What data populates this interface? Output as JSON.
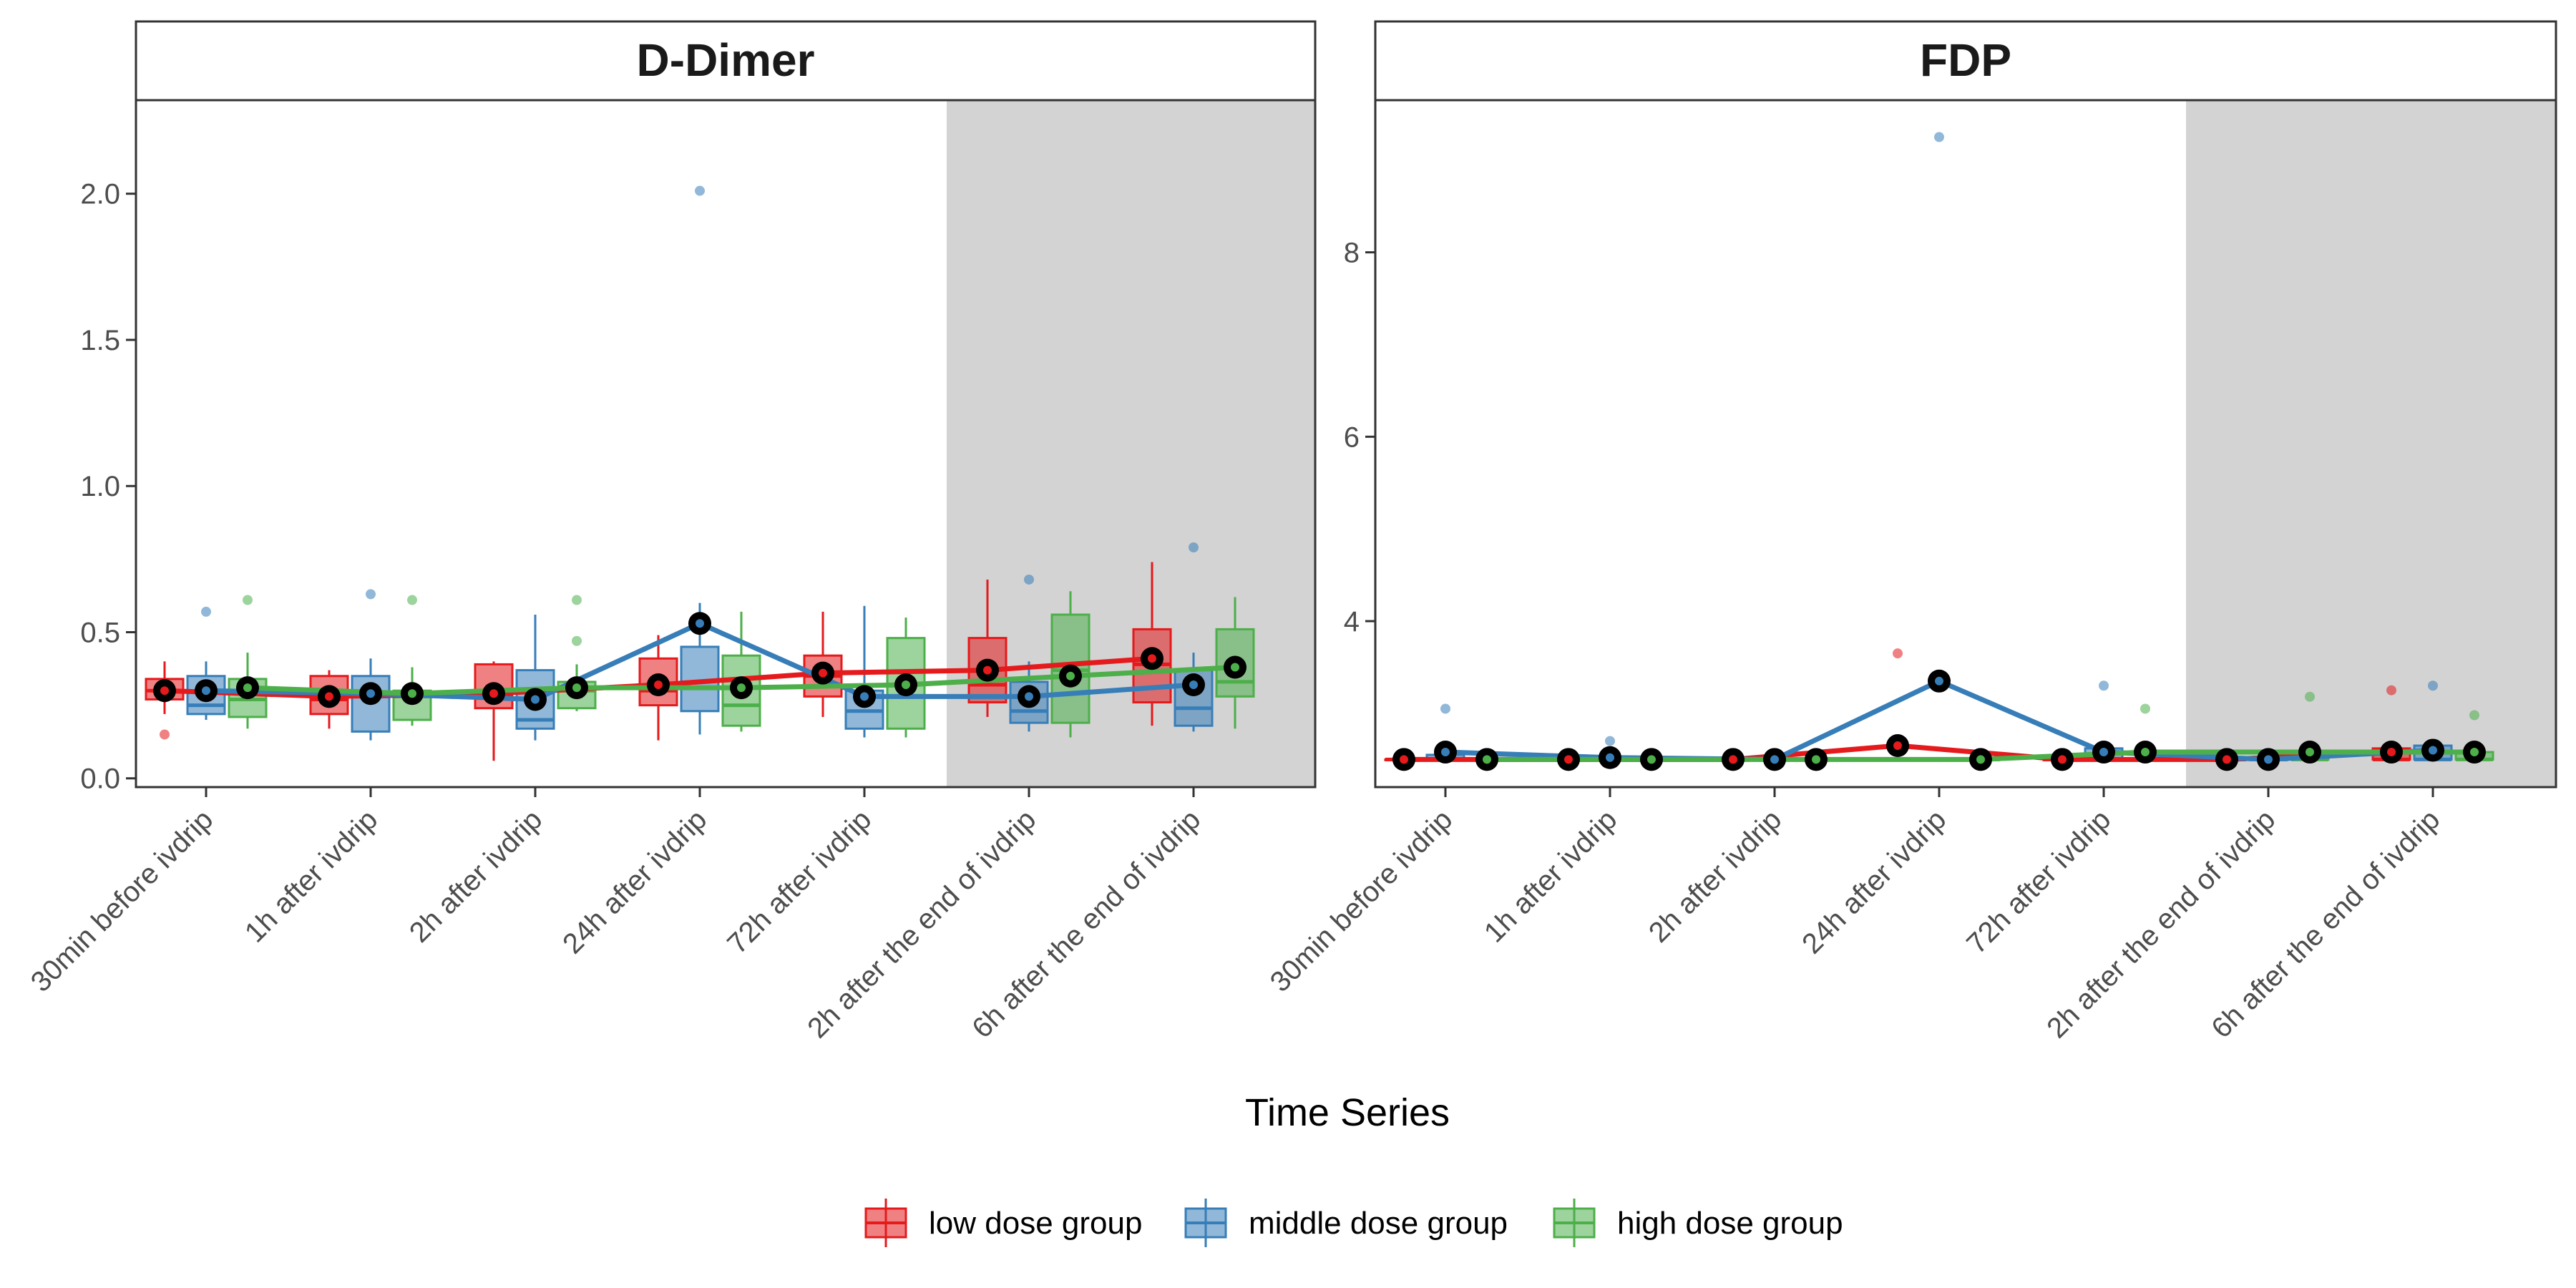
{
  "chart_data": {
    "type": "box",
    "xlabel": "Time Series",
    "categories": [
      "30min before ivdrip",
      "1h after ivdrip",
      "2h after ivdrip",
      "24h after ivdrip",
      "72h after ivdrip",
      "2h after the end of ivdrip",
      "6h after the end of ivdrip"
    ],
    "shaded_categories": [
      5,
      6
    ],
    "legend": {
      "position": "bottom"
    },
    "grid": false,
    "colors": {
      "low dose group": "#e41a1c",
      "middle dose group": "#377eb8",
      "high dose group": "#4daf4a",
      "shade": "#d3d3d3",
      "mean_marker": "#000000"
    },
    "groups": [
      "low dose group",
      "middle dose group",
      "high dose group"
    ],
    "panels": [
      {
        "title": "D-Dimer",
        "ylim": [
          -0.03,
          2.32
        ],
        "yticks": [
          "0.0",
          "0.5",
          "1.0",
          "1.5",
          "2.0"
        ],
        "yticks_values": [
          0.0,
          0.5,
          1.0,
          1.5,
          2.0
        ],
        "series": [
          {
            "name": "low dose group",
            "mean": [
              0.3,
              0.28,
              0.29,
              0.32,
              0.36,
              0.37,
              0.41
            ],
            "box": [
              {
                "q1": 0.27,
                "median": 0.3,
                "q3": 0.34,
                "lo": 0.22,
                "hi": 0.4,
                "out": [
                  0.15
                ]
              },
              {
                "q1": 0.22,
                "median": 0.27,
                "q3": 0.35,
                "lo": 0.17,
                "hi": 0.37,
                "out": []
              },
              {
                "q1": 0.24,
                "median": 0.28,
                "q3": 0.39,
                "lo": 0.06,
                "hi": 0.4,
                "out": []
              },
              {
                "q1": 0.25,
                "median": 0.3,
                "q3": 0.41,
                "lo": 0.13,
                "hi": 0.49,
                "out": []
              },
              {
                "q1": 0.28,
                "median": 0.35,
                "q3": 0.42,
                "lo": 0.21,
                "hi": 0.57,
                "out": []
              },
              {
                "q1": 0.26,
                "median": 0.32,
                "q3": 0.48,
                "lo": 0.21,
                "hi": 0.68,
                "out": []
              },
              {
                "q1": 0.26,
                "median": 0.39,
                "q3": 0.51,
                "lo": 0.18,
                "hi": 0.74,
                "out": []
              }
            ]
          },
          {
            "name": "middle dose group",
            "mean": [
              0.3,
              0.29,
              0.27,
              0.53,
              0.28,
              0.28,
              0.32
            ],
            "box": [
              {
                "q1": 0.22,
                "median": 0.25,
                "q3": 0.35,
                "lo": 0.2,
                "hi": 0.4,
                "out": [
                  0.57
                ]
              },
              {
                "q1": 0.16,
                "median": 0.28,
                "q3": 0.35,
                "lo": 0.13,
                "hi": 0.41,
                "out": [
                  0.63
                ]
              },
              {
                "q1": 0.17,
                "median": 0.2,
                "q3": 0.37,
                "lo": 0.13,
                "hi": 0.56,
                "out": []
              },
              {
                "q1": 0.23,
                "median": 0.31,
                "q3": 0.45,
                "lo": 0.15,
                "hi": 0.6,
                "out": [
                  2.01
                ]
              },
              {
                "q1": 0.17,
                "median": 0.23,
                "q3": 0.3,
                "lo": 0.14,
                "hi": 0.59,
                "out": []
              },
              {
                "q1": 0.19,
                "median": 0.23,
                "q3": 0.33,
                "lo": 0.16,
                "hi": 0.4,
                "out": [
                  0.68
                ]
              },
              {
                "q1": 0.18,
                "median": 0.24,
                "q3": 0.37,
                "lo": 0.16,
                "hi": 0.43,
                "out": [
                  0.79
                ]
              }
            ]
          },
          {
            "name": "high dose group",
            "mean": [
              0.31,
              0.29,
              0.31,
              0.31,
              0.32,
              0.35,
              0.38
            ],
            "box": [
              {
                "q1": 0.21,
                "median": 0.27,
                "q3": 0.34,
                "lo": 0.17,
                "hi": 0.43,
                "out": [
                  0.61
                ]
              },
              {
                "q1": 0.2,
                "median": 0.28,
                "q3": 0.3,
                "lo": 0.18,
                "hi": 0.38,
                "out": [
                  0.61
                ]
              },
              {
                "q1": 0.24,
                "median": 0.3,
                "q3": 0.33,
                "lo": 0.23,
                "hi": 0.39,
                "out": [
                  0.47,
                  0.61
                ]
              },
              {
                "q1": 0.18,
                "median": 0.25,
                "q3": 0.42,
                "lo": 0.16,
                "hi": 0.57,
                "out": []
              },
              {
                "q1": 0.17,
                "median": 0.28,
                "q3": 0.48,
                "lo": 0.14,
                "hi": 0.55,
                "out": []
              },
              {
                "q1": 0.19,
                "median": 0.37,
                "q3": 0.56,
                "lo": 0.14,
                "hi": 0.64,
                "out": []
              },
              {
                "q1": 0.28,
                "median": 0.33,
                "q3": 0.51,
                "lo": 0.17,
                "hi": 0.62,
                "out": []
              }
            ]
          }
        ]
      },
      {
        "title": "FDP",
        "ylim": [
          2.2,
          9.65
        ],
        "yticks": [
          "4",
          "6",
          "8"
        ],
        "yticks_values": [
          4,
          6,
          8
        ],
        "series": [
          {
            "name": "low dose group",
            "mean": [
              2.5,
              2.5,
              2.5,
              2.65,
              2.5,
              2.5,
              2.58
            ],
            "box": [
              {
                "q1": 2.5,
                "median": 2.5,
                "q3": 2.5,
                "lo": 2.5,
                "hi": 2.5,
                "out": []
              },
              {
                "q1": 2.5,
                "median": 2.5,
                "q3": 2.5,
                "lo": 2.5,
                "hi": 2.5,
                "out": []
              },
              {
                "q1": 2.5,
                "median": 2.5,
                "q3": 2.5,
                "lo": 2.5,
                "hi": 2.5,
                "out": []
              },
              {
                "q1": 2.5,
                "median": 2.5,
                "q3": 2.5,
                "lo": 2.5,
                "hi": 2.5,
                "out": [
                  3.65
                ]
              },
              {
                "q1": 2.5,
                "median": 2.5,
                "q3": 2.5,
                "lo": 2.5,
                "hi": 2.5,
                "out": []
              },
              {
                "q1": 2.5,
                "median": 2.5,
                "q3": 2.5,
                "lo": 2.5,
                "hi": 2.5,
                "out": []
              },
              {
                "q1": 2.5,
                "median": 2.5,
                "q3": 2.62,
                "lo": 2.5,
                "hi": 2.62,
                "out": [
                  3.25
                ]
              }
            ]
          },
          {
            "name": "middle dose group",
            "mean": [
              2.58,
              2.52,
              2.5,
              3.35,
              2.58,
              2.5,
              2.6
            ],
            "box": [
              {
                "q1": 2.5,
                "median": 2.5,
                "q3": 2.55,
                "lo": 2.5,
                "hi": 2.6,
                "out": [
                  3.05
                ]
              },
              {
                "q1": 2.5,
                "median": 2.5,
                "q3": 2.5,
                "lo": 2.5,
                "hi": 2.5,
                "out": [
                  2.7
                ]
              },
              {
                "q1": 2.5,
                "median": 2.5,
                "q3": 2.5,
                "lo": 2.5,
                "hi": 2.5,
                "out": []
              },
              {
                "q1": 2.5,
                "median": 2.5,
                "q3": 2.5,
                "lo": 2.5,
                "hi": 2.5,
                "out": [
                  9.25
                ]
              },
              {
                "q1": 2.5,
                "median": 2.5,
                "q3": 2.62,
                "lo": 2.5,
                "hi": 2.62,
                "out": [
                  3.3
                ]
              },
              {
                "q1": 2.5,
                "median": 2.5,
                "q3": 2.5,
                "lo": 2.5,
                "hi": 2.5,
                "out": []
              },
              {
                "q1": 2.5,
                "median": 2.5,
                "q3": 2.65,
                "lo": 2.5,
                "hi": 2.65,
                "out": [
                  3.3
                ]
              }
            ]
          },
          {
            "name": "high dose group",
            "mean": [
              2.5,
              2.5,
              2.5,
              2.5,
              2.58,
              2.58,
              2.58
            ],
            "box": [
              {
                "q1": 2.5,
                "median": 2.5,
                "q3": 2.5,
                "lo": 2.5,
                "hi": 2.5,
                "out": []
              },
              {
                "q1": 2.5,
                "median": 2.5,
                "q3": 2.5,
                "lo": 2.5,
                "hi": 2.5,
                "out": []
              },
              {
                "q1": 2.5,
                "median": 2.5,
                "q3": 2.5,
                "lo": 2.5,
                "hi": 2.5,
                "out": []
              },
              {
                "q1": 2.5,
                "median": 2.5,
                "q3": 2.5,
                "lo": 2.5,
                "hi": 2.5,
                "out": []
              },
              {
                "q1": 2.5,
                "median": 2.5,
                "q3": 2.5,
                "lo": 2.5,
                "hi": 2.5,
                "out": [
                  3.05
                ]
              },
              {
                "q1": 2.5,
                "median": 2.5,
                "q3": 2.55,
                "lo": 2.5,
                "hi": 2.55,
                "out": [
                  3.18
                ]
              },
              {
                "q1": 2.5,
                "median": 2.5,
                "q3": 2.58,
                "lo": 2.5,
                "hi": 2.58,
                "out": [
                  2.98
                ]
              }
            ]
          }
        ]
      }
    ]
  }
}
